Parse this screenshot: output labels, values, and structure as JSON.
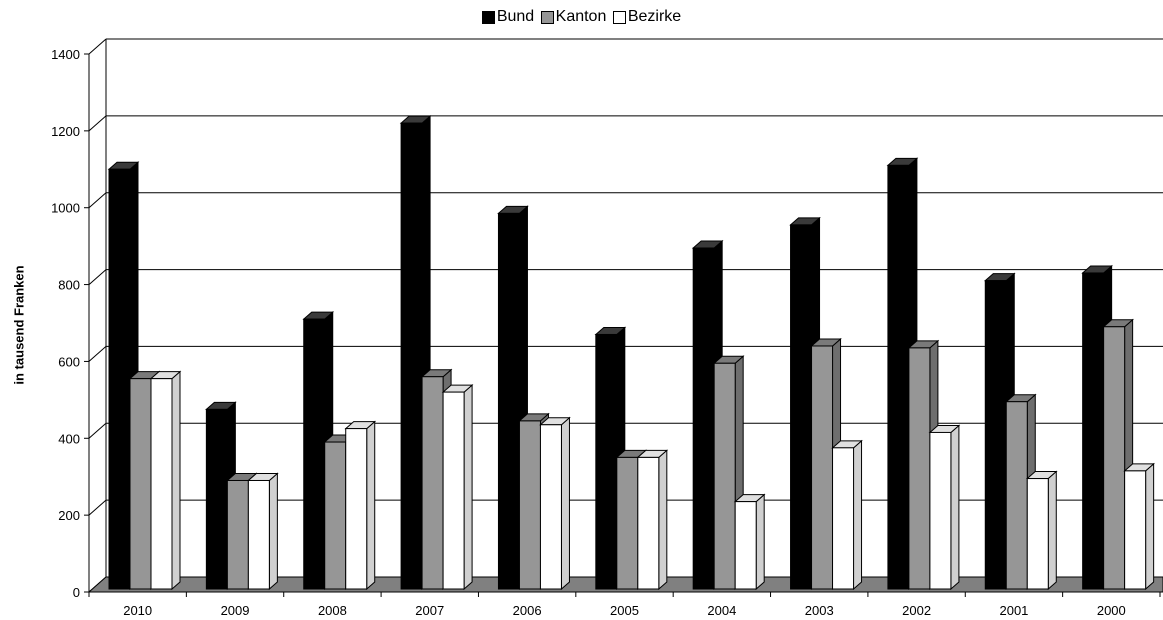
{
  "chart_data": {
    "type": "bar",
    "categories": [
      "2010",
      "2009",
      "2008",
      "2007",
      "2006",
      "2005",
      "2004",
      "2003",
      "2002",
      "2001",
      "2000"
    ],
    "series": [
      {
        "name": "Bund",
        "color": "#000000",
        "values": [
          1095,
          470,
          705,
          1215,
          980,
          665,
          890,
          950,
          1105,
          805,
          825
        ]
      },
      {
        "name": "Kanton",
        "color": "#969696",
        "values": [
          550,
          285,
          385,
          555,
          440,
          345,
          590,
          635,
          630,
          490,
          685
        ]
      },
      {
        "name": "Bezirke",
        "color": "#ffffff",
        "values": [
          550,
          285,
          420,
          515,
          430,
          345,
          230,
          370,
          410,
          290,
          310
        ]
      }
    ],
    "ylabel": "in tausend Franken",
    "yticks": [
      "0",
      "200",
      "400",
      "600",
      "800",
      "1000",
      "1200",
      "1400"
    ],
    "ylim": [
      0,
      1400
    ],
    "grid": true,
    "legend": "top-center",
    "style": "3d-clustered"
  }
}
